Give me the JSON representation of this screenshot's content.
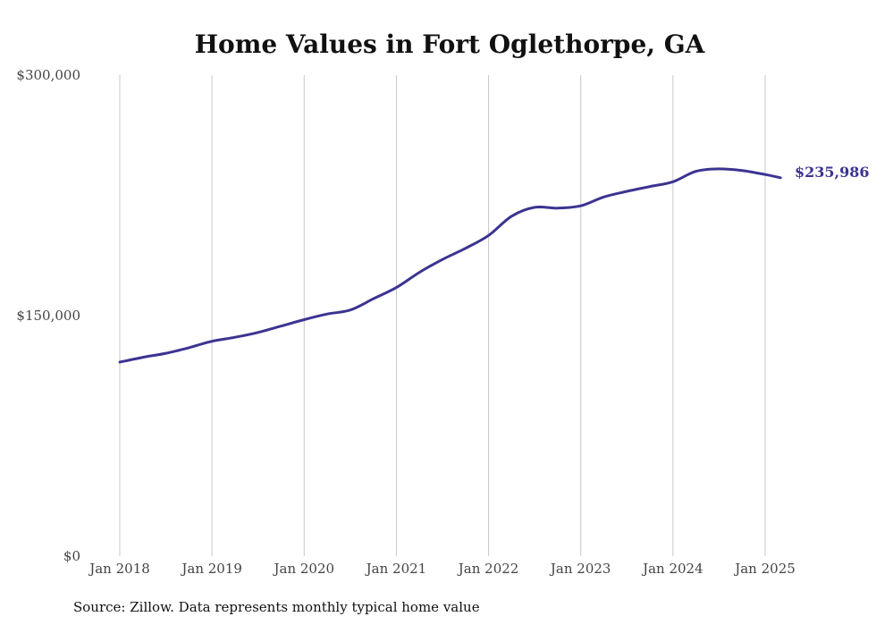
{
  "chart_data": {
    "type": "line",
    "title": "Home Values in Fort Oglethorpe, GA",
    "xlabel": "",
    "ylabel": "",
    "x_ticks": [
      "Jan 2018",
      "Jan 2019",
      "Jan 2020",
      "Jan 2021",
      "Jan 2022",
      "Jan 2023",
      "Jan 2024",
      "Jan 2025"
    ],
    "y_ticks": [
      "$0",
      "$150,000",
      "$300,000"
    ],
    "ylim": [
      0,
      300000
    ],
    "xlim": [
      "2018-01",
      "2025-03"
    ],
    "grid": "vertical",
    "legend": "none",
    "series": [
      {
        "color": "#3b3491",
        "x": [
          "2018-01",
          "2018-04",
          "2018-07",
          "2018-10",
          "2019-01",
          "2019-04",
          "2019-07",
          "2019-10",
          "2020-01",
          "2020-04",
          "2020-07",
          "2020-10",
          "2021-01",
          "2021-04",
          "2021-07",
          "2021-10",
          "2022-01",
          "2022-04",
          "2022-07",
          "2022-10",
          "2023-01",
          "2023-04",
          "2023-07",
          "2023-10",
          "2024-01",
          "2024-04",
          "2024-07",
          "2024-10",
          "2025-01",
          "2025-03"
        ],
        "y": [
          121000,
          124000,
          126500,
          130000,
          134000,
          136500,
          139500,
          143500,
          147500,
          151000,
          153500,
          160500,
          167500,
          177000,
          185000,
          192000,
          200000,
          212000,
          217500,
          217000,
          218500,
          224000,
          227500,
          230500,
          233500,
          240000,
          241500,
          240500,
          238000,
          235986
        ]
      }
    ],
    "end_label": "$235,986"
  },
  "source_note": "Source: Zillow. Data represents monthly typical home value",
  "colors": {
    "line": "#3b3491",
    "grid": "#c8c8c8",
    "text": "#444444"
  }
}
